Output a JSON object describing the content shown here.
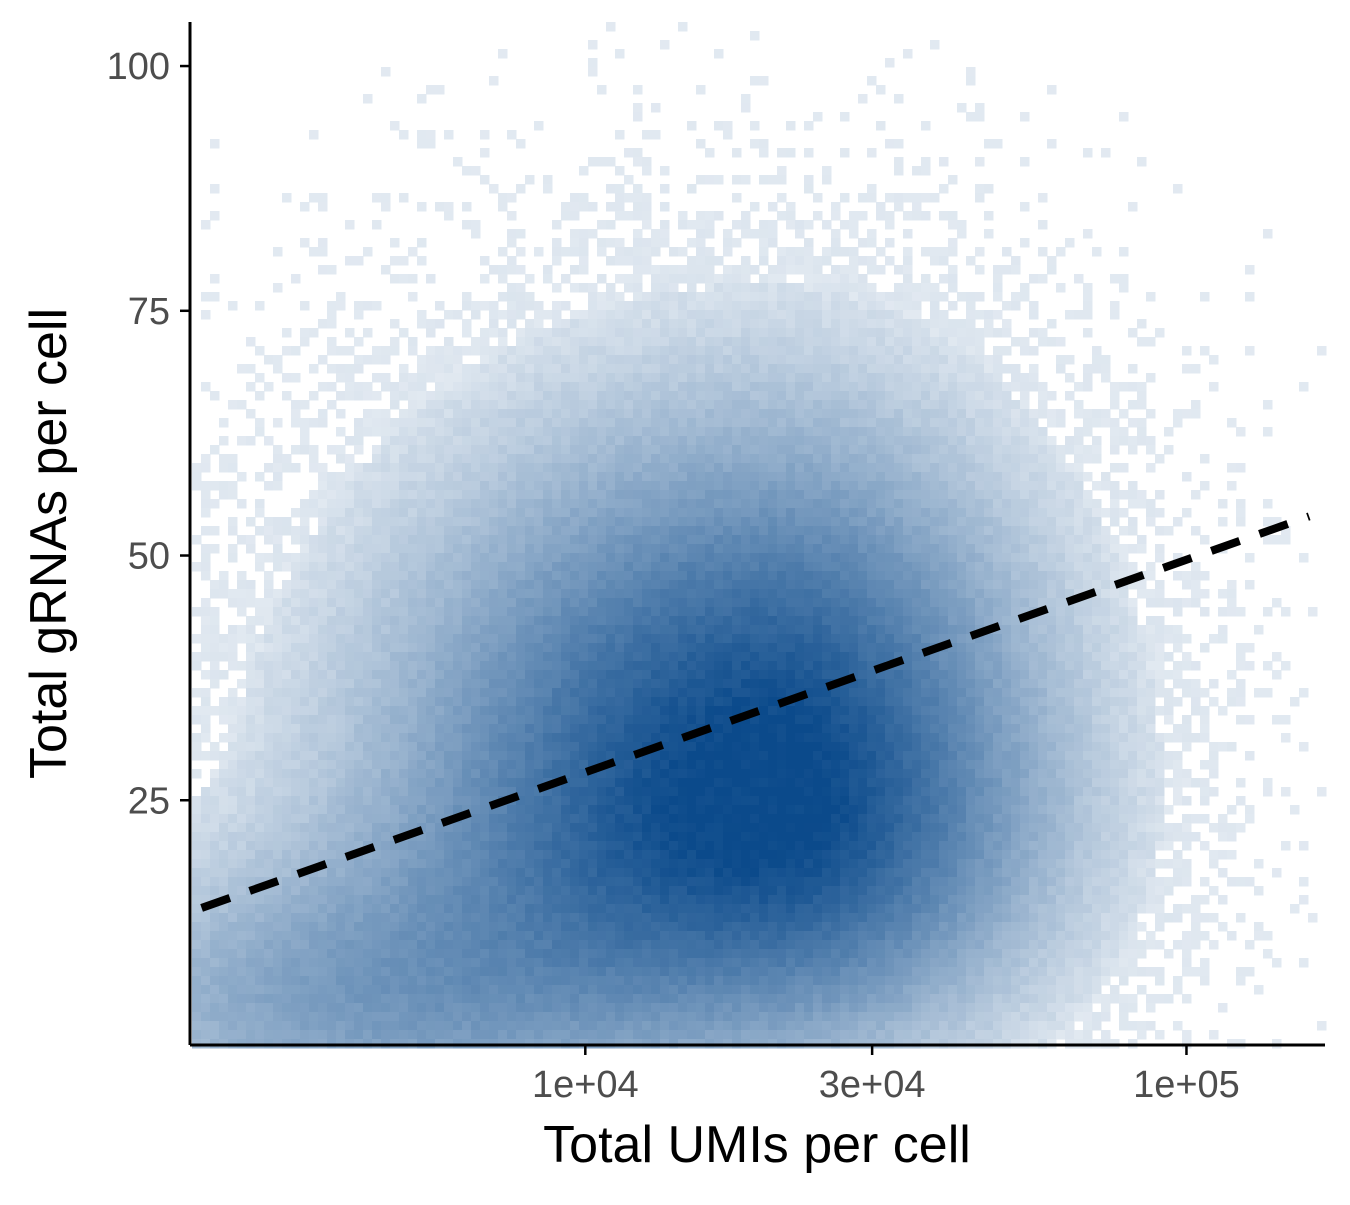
{
  "chart_data": {
    "type": "heatmap",
    "title": "",
    "xlabel": "Total UMIs per cell",
    "ylabel": "Total gRNAs per cell",
    "x_scale": "log10",
    "x_ticks": [
      {
        "value": 10000,
        "label": "1e+04"
      },
      {
        "value": 30000,
        "label": "3e+04"
      },
      {
        "value": 100000,
        "label": "1e+05"
      }
    ],
    "y_ticks": [
      {
        "value": 25,
        "label": "25"
      },
      {
        "value": 50,
        "label": "50"
      },
      {
        "value": 75,
        "label": "75"
      },
      {
        "value": 100,
        "label": "100"
      }
    ],
    "xlim": [
      2200,
      170000
    ],
    "ylim": [
      0,
      104.5
    ],
    "grid": false,
    "density": {
      "peak_x": 20000,
      "peak_y": 25,
      "description_values": {
        "x_range": [
          2200,
          160000
        ],
        "y_range": [
          0,
          104
        ]
      }
    },
    "trend_line": {
      "style": "dashed",
      "color": "#000000",
      "points": [
        {
          "x": 2300,
          "y": 14
        },
        {
          "x": 160000,
          "y": 54
        }
      ]
    },
    "colors": {
      "density_high": "#0b4a8b",
      "density_low": "#ffffff",
      "axis": "#000000"
    }
  }
}
